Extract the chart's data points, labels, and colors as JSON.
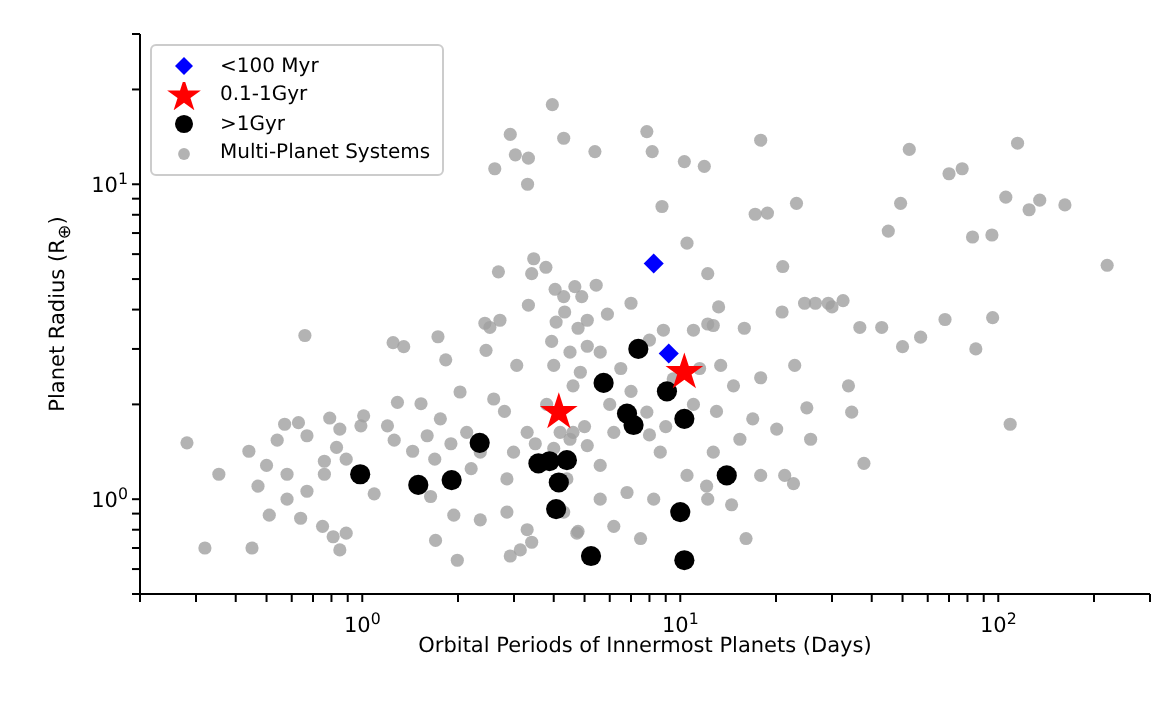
{
  "chart_data": {
    "type": "scatter",
    "xlabel": "Orbital Periods of Innermost Planets (Days)",
    "ylabel": "Planet Radius (R$_{⊕}$)",
    "log": "xy",
    "legend": "top left",
    "grid": false,
    "xlim": [
      0.2,
      300
    ],
    "ylim": [
      0.5,
      30
    ],
    "xticks": [
      {
        "value": 0.2,
        "label": null
      },
      {
        "value": 0.3,
        "label": null
      },
      {
        "value": 0.4,
        "label": null
      },
      {
        "value": 0.5,
        "label": null
      },
      {
        "value": 0.6,
        "label": null
      },
      {
        "value": 0.7,
        "label": null
      },
      {
        "value": 0.8,
        "label": null
      },
      {
        "value": 0.9,
        "label": null
      },
      {
        "value": 1,
        "label": "10$^{0}$"
      },
      {
        "value": 2,
        "label": null
      },
      {
        "value": 3,
        "label": null
      },
      {
        "value": 4,
        "label": null
      },
      {
        "value": 5,
        "label": null
      },
      {
        "value": 6,
        "label": null
      },
      {
        "value": 7,
        "label": null
      },
      {
        "value": 8,
        "label": null
      },
      {
        "value": 9,
        "label": null
      },
      {
        "value": 10,
        "label": "10$^{1}$"
      },
      {
        "value": 20,
        "label": null
      },
      {
        "value": 30,
        "label": null
      },
      {
        "value": 40,
        "label": null
      },
      {
        "value": 50,
        "label": null
      },
      {
        "value": 60,
        "label": null
      },
      {
        "value": 70,
        "label": null
      },
      {
        "value": 80,
        "label": null
      },
      {
        "value": 90,
        "label": null
      },
      {
        "value": 100,
        "label": "10$^{2}$"
      },
      {
        "value": 200,
        "label": null
      },
      {
        "value": 300,
        "label": null
      }
    ],
    "yticks": [
      {
        "value": 0.5,
        "label": null
      },
      {
        "value": 0.6,
        "label": null
      },
      {
        "value": 0.7,
        "label": null
      },
      {
        "value": 0.8,
        "label": null
      },
      {
        "value": 0.9,
        "label": null
      },
      {
        "value": 1,
        "label": "10$^{0}$"
      },
      {
        "value": 2,
        "label": null
      },
      {
        "value": 3,
        "label": null
      },
      {
        "value": 4,
        "label": null
      },
      {
        "value": 5,
        "label": null
      },
      {
        "value": 6,
        "label": null
      },
      {
        "value": 7,
        "label": null
      },
      {
        "value": 8,
        "label": null
      },
      {
        "value": 9,
        "label": null
      },
      {
        "value": 10,
        "label": "10$^{1}$"
      },
      {
        "value": 20,
        "label": null
      },
      {
        "value": 30,
        "label": null
      }
    ],
    "series": [
      {
        "name": "<100 Myr",
        "color": "#0000ff",
        "marker": "diamond",
        "x": [
          8.25,
          9.2
        ],
        "values": [
          5.6,
          2.9
        ]
      },
      {
        "name": "0.1-1Gyr",
        "color": "#ff0000",
        "marker": "star",
        "x": [
          10.3,
          4.15
        ],
        "values": [
          2.53,
          1.89
        ]
      },
      {
        "name": ">1Gyr",
        "color": "#000000",
        "marker": "circle",
        "x": [
          0.985,
          1.5,
          1.91,
          2.34,
          3.58,
          3.88,
          4.4,
          4.15,
          4.07,
          5.24,
          7.38,
          5.74,
          9.08,
          6.8,
          7.13,
          10.3,
          14,
          10,
          10.3
        ],
        "values": [
          1.2,
          1.11,
          1.15,
          1.51,
          1.3,
          1.32,
          1.33,
          1.13,
          0.93,
          0.66,
          3.0,
          2.34,
          2.2,
          1.87,
          1.72,
          1.8,
          1.19,
          0.91,
          0.64
        ]
      },
      {
        "name": "Multi-Planet Systems",
        "color": "#a0a0a0",
        "marker": "circle",
        "x": [
          3.96,
          2.92,
          4.3,
          3.03,
          3.33,
          2.61,
          3.31,
          5.39,
          2.68,
          3.46,
          3.78,
          3.41,
          4.04,
          4.66,
          4.3,
          4.9,
          3.33,
          4.33,
          4.07,
          5.1,
          4.77,
          2.43,
          2.52,
          2.71,
          0.66,
          1.73,
          1.25,
          1.35,
          3.94,
          5.1,
          2.45,
          7.85,
          8.16,
          10.3,
          11.9,
          17.9,
          52.5,
          70,
          77,
          115,
          8.76,
          17.2,
          18.8,
          23.2,
          49.3,
          45.1,
          83,
          95.5,
          105.6,
          125,
          135,
          162,
          220,
          10.5,
          12.2,
          21,
          7,
          13.2,
          24.6,
          26.6,
          29.2,
          32.5,
          30,
          68,
          96,
          57,
          50,
          85,
          36.7,
          43,
          15.9,
          20.9,
          5.44,
          5.9,
          8.85,
          12.2,
          11,
          109,
          37.8,
          33.8,
          34.6,
          25.7,
          22.7,
          21.3,
          16.1,
          14.5,
          20.1,
          25,
          22.9,
          17.9,
          16.9,
          15.4,
          17.9,
          12.1,
          12.2,
          10.5,
          8.25,
          6.8,
          6.18,
          7.5,
          4.73,
          5.6,
          8.65,
          12.7,
          14.7,
          12.7,
          13.4,
          7.85,
          9.5,
          5.6,
          4.85,
          4.6,
          6.18,
          5.6,
          0.281,
          0.32,
          0.354,
          0.45,
          0.44,
          0.47,
          0.5,
          0.54,
          0.58,
          0.58,
          0.51,
          0.57,
          0.63,
          0.67,
          0.67,
          0.64,
          0.76,
          0.76,
          0.79,
          0.83,
          0.85,
          0.89,
          1.01,
          0.99,
          0.75,
          0.81,
          0.85,
          0.89,
          1.09,
          1.2,
          1.29,
          1.26,
          1.44,
          1.53,
          1.6,
          1.69,
          1.64,
          1.7,
          1.83,
          1.76,
          2.03,
          1.99,
          1.94,
          2.35,
          2.59,
          2.85,
          2.92,
          3.14,
          3.3,
          3.41,
          3.06,
          2.85,
          3.3,
          4.0,
          4.3,
          4.77,
          4.6,
          4.5,
          4.19,
          5.1,
          4.4,
          2.35,
          2.13,
          2.99,
          3.5,
          4,
          4.5,
          5,
          6,
          7,
          8,
          9,
          11,
          11.5,
          13,
          6.5,
          8,
          2.8,
          3.8,
          2.2,
          1.9
        ],
        "values": [
          17.9,
          14.4,
          14,
          12.4,
          12.1,
          11.2,
          10,
          12.7,
          5.27,
          5.8,
          5.45,
          5.2,
          4.64,
          4.73,
          4.4,
          4.4,
          4.13,
          3.93,
          3.65,
          3.7,
          3.49,
          3.62,
          3.51,
          3.7,
          3.31,
          3.28,
          3.14,
          3.05,
          3.17,
          3.06,
          2.97,
          14.7,
          12.7,
          11.8,
          11.4,
          13.8,
          12.9,
          10.8,
          11.2,
          13.5,
          8.5,
          8.03,
          8.1,
          8.7,
          8.7,
          7.1,
          6.8,
          6.9,
          9.1,
          8.3,
          8.9,
          8.6,
          5.53,
          6.5,
          5.2,
          5.48,
          4.19,
          4.08,
          4.19,
          4.19,
          4.19,
          4.27,
          4.08,
          3.72,
          3.77,
          3.27,
          3.05,
          3.0,
          3.51,
          3.51,
          3.49,
          3.93,
          4.78,
          3.87,
          3.44,
          3.6,
          3.44,
          1.73,
          1.3,
          2.29,
          1.89,
          1.55,
          1.12,
          1.19,
          0.75,
          0.96,
          1.67,
          1.95,
          2.66,
          2.43,
          1.8,
          1.55,
          1.19,
          1.1,
          1.0,
          1.19,
          1.0,
          1.05,
          0.82,
          0.75,
          0.78,
          1.0,
          1.41,
          1.41,
          2.29,
          3.56,
          2.66,
          1.89,
          2.41,
          2.93,
          2.53,
          1.63,
          1.63,
          1.28,
          1.51,
          0.7,
          1.2,
          0.7,
          1.42,
          1.1,
          1.28,
          1.54,
          1.2,
          1.0,
          0.89,
          1.73,
          1.75,
          1.59,
          1.06,
          0.87,
          1.32,
          1.2,
          1.81,
          1.46,
          1.67,
          1.34,
          1.84,
          1.71,
          0.82,
          0.76,
          0.69,
          0.78,
          1.04,
          1.71,
          2.03,
          1.54,
          1.42,
          2.01,
          1.59,
          1.34,
          1.02,
          0.74,
          2.77,
          1.8,
          2.19,
          0.64,
          0.89,
          0.86,
          2.08,
          0.91,
          0.66,
          0.69,
          0.8,
          0.73,
          2.66,
          1.16,
          1.63,
          2.66,
          0.91,
          0.79,
          2.29,
          2.93,
          1.63,
          1.48,
          1.16,
          1.41,
          1.63,
          1.41,
          1.5,
          1.45,
          1.55,
          1.7,
          2,
          2.2,
          1.6,
          1.7,
          2.0,
          2.6,
          1.9,
          2.6,
          3.2,
          1.9,
          2.0,
          1.25,
          1.5
        ]
      }
    ]
  }
}
